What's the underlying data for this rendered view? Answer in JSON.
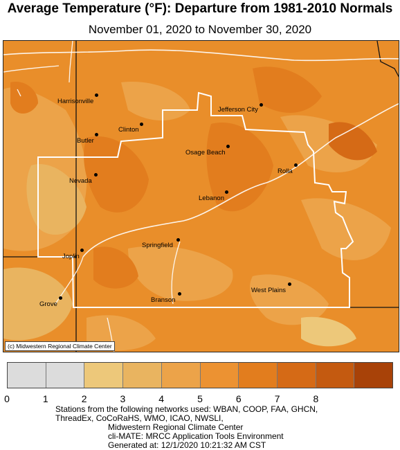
{
  "title": "Average Temperature (°F): Departure from 1981-2010 Normals",
  "subtitle": "November 01, 2020 to November 30, 2020",
  "map": {
    "credit": "(c) Midwestern Regional Climate Center",
    "cities": [
      {
        "name": "Harrisonville",
        "id": "harrisonville"
      },
      {
        "name": "Jefferson City",
        "id": "jefferson-city"
      },
      {
        "name": "Clinton",
        "id": "clinton"
      },
      {
        "name": "Butler",
        "id": "butler"
      },
      {
        "name": "Osage Beach",
        "id": "osage-beach"
      },
      {
        "name": "Rolla",
        "id": "rolla"
      },
      {
        "name": "Nevada",
        "id": "nevada"
      },
      {
        "name": "Lebanon",
        "id": "lebanon"
      },
      {
        "name": "Springfield",
        "id": "springfield"
      },
      {
        "name": "Joplin",
        "id": "joplin"
      },
      {
        "name": "West Plains",
        "id": "west-plains"
      },
      {
        "name": "Grove",
        "id": "grove"
      },
      {
        "name": "Branson",
        "id": "branson"
      }
    ]
  },
  "legend": {
    "colors": [
      "#dcdcdc",
      "#dcdcdc",
      "#edc87a",
      "#e9b460",
      "#eca349",
      "#ec9232",
      "#e27d1e",
      "#d56a16",
      "#c45a10",
      "#a84208"
    ],
    "ticks": [
      "0",
      "1",
      "2",
      "3",
      "4",
      "5",
      "6",
      "7",
      "8"
    ]
  },
  "footer": {
    "line1": "Stations from the following networks used: WBAN, COOP, FAA, GHCN,",
    "line2": "ThreadEx, CoCoRaHS, WMO, ICAO, NWSLI,",
    "line3": "Midwestern Regional Climate Center",
    "line4": "cli-MATE: MRCC Application Tools Environment",
    "line5": "Generated at: 12/1/2020 10:21:32 AM CST"
  }
}
